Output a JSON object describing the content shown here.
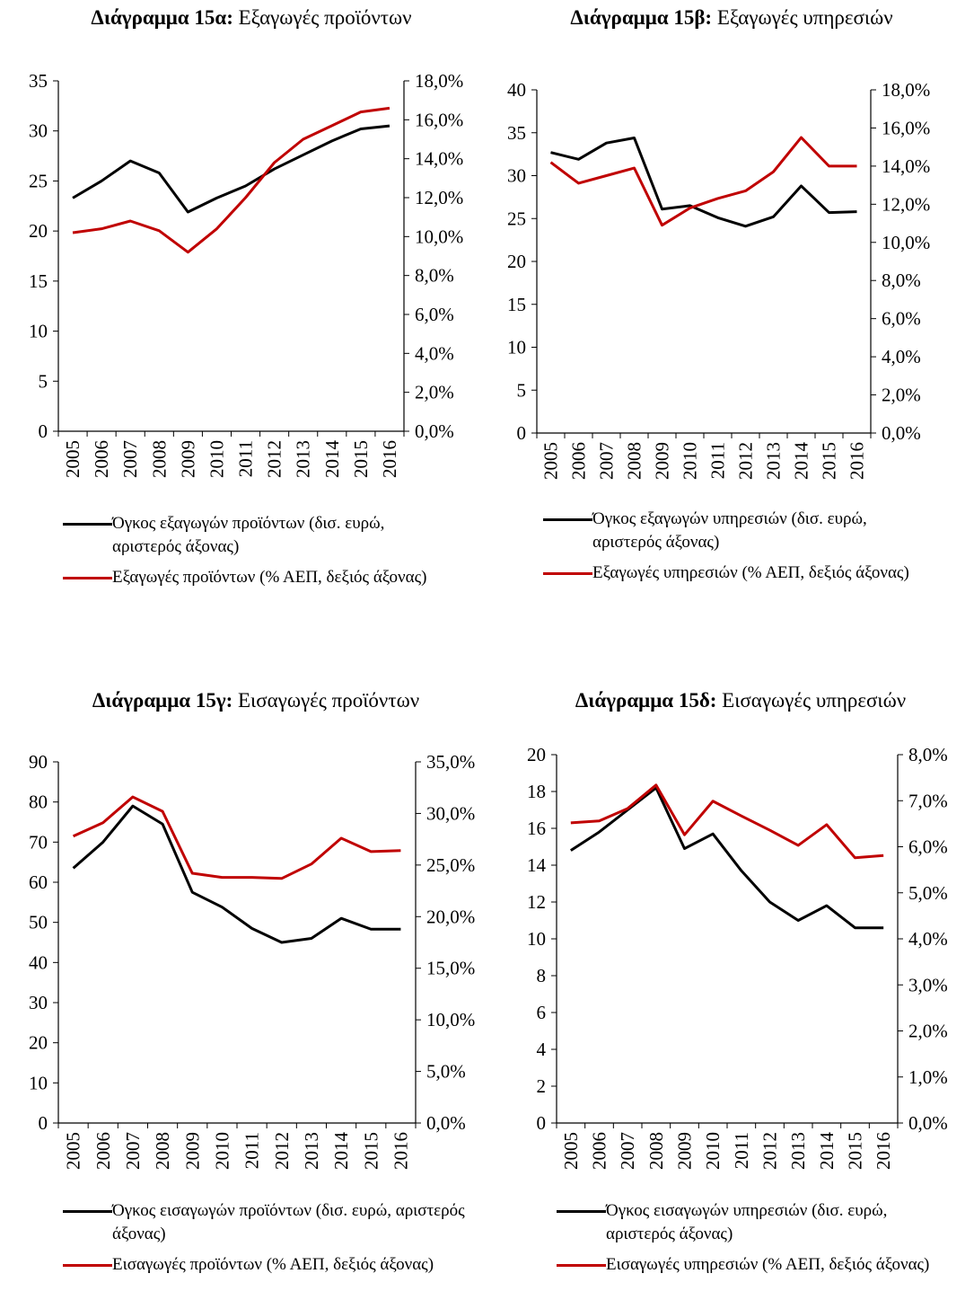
{
  "chart_data": [
    {
      "type": "line",
      "title_prefix": "Διάγραμμα 15α:",
      "title": "Εξαγωγές προϊόντων",
      "categories": [
        "2005",
        "2006",
        "2007",
        "2008",
        "2009",
        "2010",
        "2011",
        "2012",
        "2013",
        "2014",
        "2015",
        "2016"
      ],
      "ylim": [
        0,
        35
      ],
      "yticks": [
        0,
        5,
        10,
        15,
        20,
        25,
        30,
        35
      ],
      "y2lim": [
        0,
        18
      ],
      "y2ticks": [
        {
          "value": 0,
          "label": "0,0%"
        },
        {
          "value": 2,
          "label": "2,0%"
        },
        {
          "value": 4,
          "label": "4,0%"
        },
        {
          "value": 6,
          "label": "6,0%"
        },
        {
          "value": 8,
          "label": "8,0%"
        },
        {
          "value": 10,
          "label": "10,0%"
        },
        {
          "value": 12,
          "label": "12,0%"
        },
        {
          "value": 14,
          "label": "14,0%"
        },
        {
          "value": 16,
          "label": "16,0%"
        },
        {
          "value": 18,
          "label": "18,0%"
        }
      ],
      "series": [
        {
          "name": "Όγκος εξαγωγών προϊόντων (δισ. ευρώ, αριστερός άξονας)",
          "color": "#000000",
          "values": [
            23.3,
            25,
            27,
            25.8,
            21.9,
            23.3,
            24.5,
            26.2,
            27.6,
            29,
            30.2,
            30.5
          ]
        },
        {
          "name": "Εξαγωγές προϊόντων (% ΑΕΠ, δεξιός άξονας)",
          "color": "#c00000",
          "axis": "y2",
          "values": [
            10.2,
            10.4,
            10.8,
            10.3,
            9.2,
            10.4,
            12.0,
            13.8,
            15.0,
            15.7,
            16.4,
            16.6
          ]
        }
      ]
    },
    {
      "type": "line",
      "title_prefix": "Διάγραμμα 15β:",
      "title": "Εξαγωγές υπηρεσιών",
      "categories": [
        "2005",
        "2006",
        "2007",
        "2008",
        "2009",
        "2010",
        "2011",
        "2012",
        "2013",
        "2014",
        "2015",
        "2016"
      ],
      "ylim": [
        0,
        40
      ],
      "yticks": [
        0,
        5,
        10,
        15,
        20,
        25,
        30,
        35,
        40
      ],
      "y2lim": [
        0,
        18
      ],
      "y2ticks": [
        {
          "value": 0,
          "label": "0,0%"
        },
        {
          "value": 2,
          "label": "2,0%"
        },
        {
          "value": 4,
          "label": "4,0%"
        },
        {
          "value": 6,
          "label": "6,0%"
        },
        {
          "value": 8,
          "label": "8,0%"
        },
        {
          "value": 10,
          "label": "10,0%"
        },
        {
          "value": 12,
          "label": "12,0%"
        },
        {
          "value": 14,
          "label": "14,0%"
        },
        {
          "value": 16,
          "label": "16,0%"
        },
        {
          "value": 18,
          "label": "18,0%"
        }
      ],
      "series": [
        {
          "name": "Όγκος εξαγωγών υπηρεσιών (δισ. ευρώ, αριστερός άξονας)",
          "color": "#000000",
          "values": [
            32.7,
            31.9,
            33.8,
            34.4,
            26.1,
            26.5,
            25.1,
            24.1,
            25.2,
            28.8,
            25.7,
            25.8
          ]
        },
        {
          "name": "Εξαγωγές υπηρεσιών (% ΑΕΠ, δεξιός άξονας)",
          "color": "#c00000",
          "axis": "y2",
          "values": [
            14.2,
            13.1,
            13.5,
            13.9,
            10.9,
            11.8,
            12.3,
            12.7,
            13.7,
            15.5,
            14.0,
            14.0
          ]
        }
      ]
    },
    {
      "type": "line",
      "title_prefix": "Διάγραμμα 15γ:",
      "title": "Εισαγωγές προϊόντων",
      "categories": [
        "2005",
        "2006",
        "2007",
        "2008",
        "2009",
        "2010",
        "2011",
        "2012",
        "2013",
        "2014",
        "2015",
        "2016"
      ],
      "ylim": [
        0,
        90
      ],
      "yticks": [
        0,
        10,
        20,
        30,
        40,
        50,
        60,
        70,
        80,
        90
      ],
      "y2lim": [
        0,
        35
      ],
      "y2ticks": [
        {
          "value": 0,
          "label": "0,0%"
        },
        {
          "value": 5,
          "label": "5,0%"
        },
        {
          "value": 10,
          "label": "10,0%"
        },
        {
          "value": 15,
          "label": "15,0%"
        },
        {
          "value": 20,
          "label": "20,0%"
        },
        {
          "value": 25,
          "label": "25,0%"
        },
        {
          "value": 30,
          "label": "30,0%"
        },
        {
          "value": 35,
          "label": "35,0%"
        }
      ],
      "series": [
        {
          "name": "Όγκος εισαγωγών προϊόντων (δισ. ευρώ, αριστερός άξονας)",
          "color": "#000000",
          "values": [
            63.5,
            70,
            79,
            74.5,
            57.5,
            53.8,
            48.5,
            45,
            46,
            51,
            48.3,
            48.3
          ]
        },
        {
          "name": "Εισαγωγές προϊόντων (% ΑΕΠ, δεξιός άξονας)",
          "color": "#c00000",
          "axis": "y2",
          "values": [
            27.8,
            29.1,
            31.6,
            30.2,
            24.2,
            23.8,
            23.8,
            23.7,
            25.1,
            27.6,
            26.3,
            26.4
          ]
        }
      ]
    },
    {
      "type": "line",
      "title_prefix": "Διάγραμμα 15δ:",
      "title": "Εισαγωγές υπηρεσιών",
      "categories": [
        "2005",
        "2006",
        "2007",
        "2008",
        "2009",
        "2010",
        "2011",
        "2012",
        "2013",
        "2014",
        "2015",
        "2016"
      ],
      "ylim": [
        0,
        20
      ],
      "yticks": [
        0,
        2,
        4,
        6,
        8,
        10,
        12,
        14,
        16,
        18,
        20
      ],
      "y2lim": [
        0,
        8
      ],
      "y2ticks": [
        {
          "value": 0,
          "label": "0,0%"
        },
        {
          "value": 1,
          "label": "1,0%"
        },
        {
          "value": 2,
          "label": "2,0%"
        },
        {
          "value": 3,
          "label": "3,0%"
        },
        {
          "value": 4,
          "label": "4,0%"
        },
        {
          "value": 5,
          "label": "5,0%"
        },
        {
          "value": 6,
          "label": "6,0%"
        },
        {
          "value": 7,
          "label": "7,0%"
        },
        {
          "value": 8,
          "label": "8,0%"
        }
      ],
      "series": [
        {
          "name": "Όγκος εισαγωγών υπηρεσιών (δισ. ευρώ, αριστερός άξονας)",
          "color": "#000000",
          "values": [
            14.8,
            15.8,
            17,
            18.2,
            14.9,
            15.7,
            13.7,
            12,
            11,
            11.8,
            10.6,
            10.6
          ]
        },
        {
          "name": "Εισαγωγές υπηρεσιών (% ΑΕΠ, δεξιός άξονας)",
          "color": "#c00000",
          "axis": "y2",
          "values": [
            6.52,
            6.56,
            6.83,
            7.34,
            6.26,
            6.99,
            6.67,
            6.36,
            6.03,
            6.48,
            5.76,
            5.81
          ]
        }
      ]
    }
  ]
}
